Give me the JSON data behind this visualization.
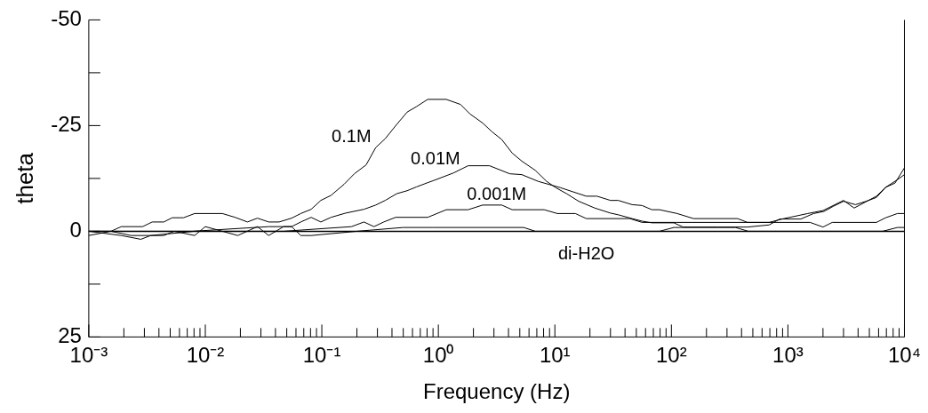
{
  "chart_data": {
    "type": "line",
    "xlabel": "Frequency (Hz)",
    "ylabel": "theta",
    "log": "x",
    "legend": false,
    "grid": false,
    "marker": "none",
    "line_style": "solid",
    "xlim": [
      0.001,
      10000
    ],
    "ylim": [
      25,
      -50
    ],
    "xticks": [
      {
        "value": 0.001,
        "label": "10⁻³"
      },
      {
        "value": 0.002,
        "label": null
      },
      {
        "value": 0.003,
        "label": null
      },
      {
        "value": 0.004,
        "label": null
      },
      {
        "value": 0.005,
        "label": null
      },
      {
        "value": 0.006,
        "label": null
      },
      {
        "value": 0.007,
        "label": null
      },
      {
        "value": 0.008,
        "label": null
      },
      {
        "value": 0.009,
        "label": null
      },
      {
        "value": 0.01,
        "label": "10⁻²"
      },
      {
        "value": 0.02,
        "label": null
      },
      {
        "value": 0.03,
        "label": null
      },
      {
        "value": 0.04,
        "label": null
      },
      {
        "value": 0.05,
        "label": null
      },
      {
        "value": 0.06,
        "label": null
      },
      {
        "value": 0.07,
        "label": null
      },
      {
        "value": 0.08,
        "label": null
      },
      {
        "value": 0.09,
        "label": null
      },
      {
        "value": 0.1,
        "label": "10⁻¹"
      },
      {
        "value": 0.2,
        "label": null
      },
      {
        "value": 0.3,
        "label": null
      },
      {
        "value": 0.4,
        "label": null
      },
      {
        "value": 0.5,
        "label": null
      },
      {
        "value": 0.6,
        "label": null
      },
      {
        "value": 0.7,
        "label": null
      },
      {
        "value": 0.8,
        "label": null
      },
      {
        "value": 0.9,
        "label": null
      },
      {
        "value": 1,
        "label": "10⁰"
      },
      {
        "value": 2,
        "label": null
      },
      {
        "value": 3,
        "label": null
      },
      {
        "value": 4,
        "label": null
      },
      {
        "value": 5,
        "label": null
      },
      {
        "value": 6,
        "label": null
      },
      {
        "value": 7,
        "label": null
      },
      {
        "value": 8,
        "label": null
      },
      {
        "value": 9,
        "label": null
      },
      {
        "value": 10,
        "label": "10¹"
      },
      {
        "value": 20,
        "label": null
      },
      {
        "value": 30,
        "label": null
      },
      {
        "value": 40,
        "label": null
      },
      {
        "value": 50,
        "label": null
      },
      {
        "value": 60,
        "label": null
      },
      {
        "value": 70,
        "label": null
      },
      {
        "value": 80,
        "label": null
      },
      {
        "value": 90,
        "label": null
      },
      {
        "value": 100,
        "label": "10²"
      },
      {
        "value": 200,
        "label": null
      },
      {
        "value": 300,
        "label": null
      },
      {
        "value": 400,
        "label": null
      },
      {
        "value": 500,
        "label": null
      },
      {
        "value": 600,
        "label": null
      },
      {
        "value": 700,
        "label": null
      },
      {
        "value": 800,
        "label": null
      },
      {
        "value": 900,
        "label": null
      },
      {
        "value": 1000,
        "label": "10³"
      },
      {
        "value": 2000,
        "label": null
      },
      {
        "value": 3000,
        "label": null
      },
      {
        "value": 4000,
        "label": null
      },
      {
        "value": 5000,
        "label": null
      },
      {
        "value": 6000,
        "label": null
      },
      {
        "value": 7000,
        "label": null
      },
      {
        "value": 8000,
        "label": null
      },
      {
        "value": 9000,
        "label": null
      },
      {
        "value": 10000,
        "label": "10⁴"
      }
    ],
    "yticks": [
      25,
      {
        "value": 12.5,
        "label": null
      },
      0,
      {
        "value": -12.5,
        "label": null
      },
      -25,
      {
        "value": -37.5,
        "label": null
      },
      -50
    ],
    "ref_lines": [
      {
        "axis": "y",
        "value": 0,
        "color": "#000000"
      }
    ],
    "series": [
      {
        "name": "0.1M",
        "color": "#000000",
        "x": [
          0.001,
          0.00155,
          0.0019,
          0.0029,
          0.0035,
          0.0044,
          0.0052,
          0.0065,
          0.0081,
          0.014,
          0.018,
          0.023,
          0.028,
          0.035,
          0.043,
          0.055,
          0.066,
          0.081,
          0.098,
          0.12,
          0.155,
          0.19,
          0.24,
          0.29,
          0.35,
          0.44,
          0.54,
          0.65,
          0.81,
          1.17,
          1.55,
          1.86,
          2.4,
          2.9,
          3.5,
          4.3,
          5.2,
          6.8,
          8.5,
          10.2,
          12.6,
          16,
          22,
          30,
          35,
          46,
          56,
          68,
          105,
          126,
          250,
          450,
          690,
          850,
          1290,
          1660,
          2040,
          2450,
          3000,
          3800,
          4700,
          5750,
          6900,
          8300,
          10000
        ],
        "values": [
          0,
          0,
          -1.1,
          -1.1,
          -2.2,
          -2.2,
          -3.2,
          -3.2,
          -4.2,
          -4.2,
          -3.3,
          -2.2,
          -3.1,
          -2.2,
          -2.2,
          -3.1,
          -4.2,
          -5.2,
          -7.3,
          -8.5,
          -11.1,
          -13.6,
          -15.7,
          -19.8,
          -21.9,
          -25.3,
          -28.2,
          -29.5,
          -31.2,
          -31.2,
          -30,
          -27.8,
          -25.6,
          -23.5,
          -21.7,
          -18.5,
          -16.6,
          -14.4,
          -11.8,
          -10.3,
          -8.9,
          -7.1,
          -5.5,
          -4.3,
          -3.9,
          -3,
          -2.4,
          -2,
          -2,
          -1,
          -1,
          -1,
          -1.5,
          -2.9,
          -2.9,
          -4.2,
          -4.7,
          -5.9,
          -7.1,
          -6.3,
          -7.1,
          -8,
          -10.4,
          -11.4,
          -15
        ]
      },
      {
        "name": "0.01M",
        "color": "#000000",
        "x": [
          0.001,
          0.0078,
          0.035,
          0.055,
          0.066,
          0.081,
          0.098,
          0.12,
          0.16,
          0.23,
          0.29,
          0.35,
          0.44,
          0.54,
          0.65,
          0.81,
          0.91,
          1.35,
          1.8,
          2.75,
          4.1,
          5.2,
          7.2,
          11.2,
          18.6,
          23,
          30,
          35,
          46,
          56,
          68,
          79,
          112,
          155,
          370,
          450,
          690,
          890,
          1480,
          2000,
          3000,
          3700,
          5750,
          6900,
          8700,
          10000
        ],
        "values": [
          0,
          0,
          -1.1,
          -1.1,
          -2.2,
          -3.3,
          -2.2,
          -3.3,
          -4.3,
          -5.2,
          -6.2,
          -7.3,
          -8.9,
          -9.6,
          -10.5,
          -11.5,
          -12,
          -13.8,
          -15.5,
          -15.5,
          -13.6,
          -13.4,
          -11.8,
          -10.3,
          -8.3,
          -8.3,
          -7.3,
          -7.3,
          -6.3,
          -6.1,
          -5.1,
          -5.1,
          -4.2,
          -3,
          -3,
          -2.1,
          -2.1,
          -2.9,
          -4.2,
          -4.9,
          -7.3,
          -5.5,
          -8.3,
          -10.4,
          -12.2,
          -13.4
        ]
      },
      {
        "name": "0.001M",
        "color": "#000000",
        "x": [
          0.001,
          0.0019,
          0.0028,
          0.0034,
          0.0081,
          0.047,
          0.18,
          0.23,
          0.28,
          0.34,
          0.43,
          0.81,
          1.17,
          1.8,
          2.4,
          3.5,
          4.3,
          8.1,
          10.5,
          15,
          18.6,
          44,
          56,
          112,
          1550,
          2000,
          2400,
          5750,
          6900,
          8700,
          10000
        ],
        "values": [
          0,
          1,
          1.9,
          1,
          0,
          0,
          -1.1,
          -2.2,
          -1.1,
          -2.2,
          -3.3,
          -3.3,
          -5.1,
          -5.1,
          -6.2,
          -6.2,
          -5.1,
          -5.1,
          -4.2,
          -4.2,
          -3,
          -3,
          -2.1,
          -2.1,
          -2.1,
          -1,
          -2.1,
          -2.1,
          -3.2,
          -4.2,
          -4.2
        ]
      },
      {
        "name": "di-H2O",
        "color": "#000000",
        "x": [
          0.001,
          0.00155,
          0.0023,
          0.0044,
          0.0054,
          0.0081,
          0.01,
          0.019,
          0.028,
          0.035,
          0.047,
          0.055,
          0.066,
          0.081,
          0.2,
          0.5,
          0.91,
          5.4,
          6.8,
          79,
          105,
          355,
          457,
          6500,
          8700,
          10000
        ],
        "values": [
          1,
          0,
          1,
          1,
          0,
          1,
          -1.1,
          1,
          -1.1,
          1,
          -1.1,
          -1.1,
          1,
          1,
          0,
          -0.9,
          -0.9,
          -0.9,
          0,
          0,
          -0.9,
          -0.9,
          0,
          0,
          -0.9,
          -0.9
        ]
      }
    ]
  }
}
